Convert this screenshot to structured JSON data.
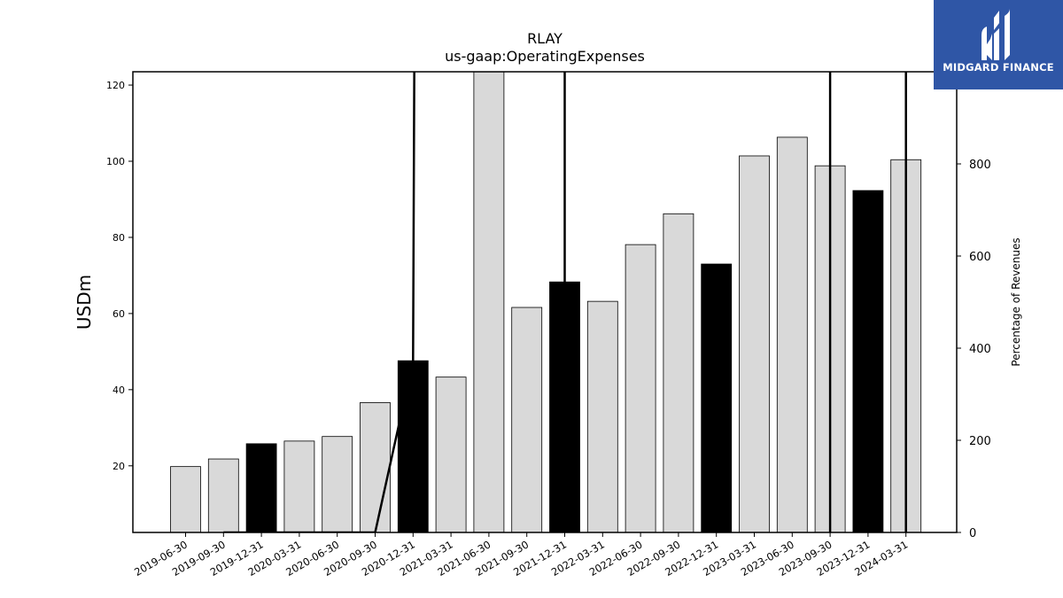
{
  "chart_data": {
    "type": "bar",
    "title": "RLAY",
    "subtitle": "us-gaap:OperatingExpenses",
    "ylabel": "USDm",
    "y2label": "Percentage of Revenues",
    "ylim": [
      2.5,
      123.5
    ],
    "y2lim": [
      0,
      1000
    ],
    "yticks": [
      20,
      40,
      60,
      80,
      100,
      120
    ],
    "y2ticks": [
      0,
      200,
      400,
      600,
      800
    ],
    "categories": [
      "2019-06-30",
      "2019-09-30",
      "2019-12-31",
      "2020-03-31",
      "2020-06-30",
      "2020-09-30",
      "2020-12-31",
      "2021-03-31",
      "2021-06-30",
      "2021-09-30",
      "2021-12-31",
      "2022-03-31",
      "2022-06-30",
      "2022-09-30",
      "2022-12-31",
      "2023-03-31",
      "2023-06-30",
      "2023-09-30",
      "2023-12-31",
      "2024-03-31"
    ],
    "values": [
      19.8,
      21.8,
      25.8,
      26.5,
      27.7,
      36.6,
      47.6,
      43.3,
      124.0,
      61.6,
      68.3,
      63.2,
      78.1,
      86.2,
      73.0,
      101.4,
      106.3,
      98.8,
      92.3,
      100.4
    ],
    "highlighted": [
      false,
      false,
      true,
      false,
      false,
      false,
      true,
      false,
      false,
      false,
      true,
      false,
      false,
      false,
      true,
      false,
      false,
      false,
      true,
      false
    ],
    "percentage_of_revenues": [
      null,
      0,
      0,
      0,
      0,
      0,
      373,
      20000,
      null,
      null,
      1300,
      null,
      null,
      null,
      null,
      null,
      null,
      12000,
      null,
      15000
    ],
    "colors": {
      "bar": "#d9d9d9",
      "highlight": "#000000",
      "line": "#000000"
    }
  },
  "logo": {
    "text": "MIDGARD FINANCE",
    "background": "#2f56a6"
  }
}
